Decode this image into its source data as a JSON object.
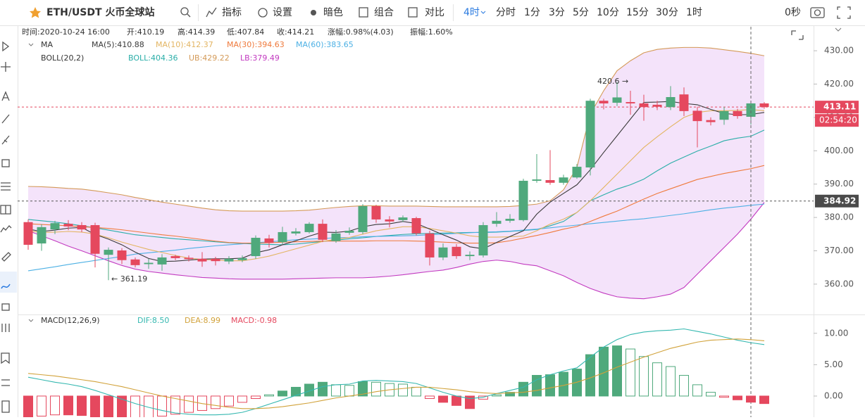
{
  "toolbar": {
    "symbol": "ETH/USDT 火币全球站",
    "buttons": [
      "指标",
      "设置",
      "暗色",
      "组合",
      "对比"
    ],
    "intervals": [
      "4时",
      "分时",
      "1分",
      "3分",
      "5分",
      "10分",
      "15分",
      "30分",
      "1时"
    ],
    "timer": "0秒"
  },
  "info": [
    "时间:2020-10-24 16:00",
    "开:410.19",
    "高:414.39",
    "低:407.84",
    "收:414.21",
    "涨幅:0.98%(4.03)",
    "振幅:1.60%"
  ],
  "chart_data": [
    {
      "type": "candlestick",
      "legend_ma": "MA",
      "legend_boll": "BOLL(20,2)",
      "ylim": [
        350.9,
        437.2
      ],
      "yticks": [
        {
          "value": 360,
          "label": "360.00"
        },
        {
          "value": 370,
          "label": "370.00"
        },
        {
          "value": 380,
          "label": "380.00"
        },
        {
          "value": 390,
          "label": "390.00"
        },
        {
          "value": 400,
          "label": "400.00"
        },
        {
          "value": 410,
          "label": "410.00"
        },
        {
          "value": 420,
          "label": "420.00"
        },
        {
          "value": 430,
          "label": "430.00"
        }
      ],
      "up_color": "#4fa97c",
      "down_color": "#e5485e",
      "open": [
        378.6,
        372.2,
        376.4,
        378.1,
        377.7,
        377.7,
        368.8,
        370.1,
        367.4,
        366.0,
        365.9,
        368.4,
        367.9,
        367.6,
        367.6,
        366.8,
        367.2,
        368.4,
        373.7,
        372.6,
        375.2,
        375.6,
        378.1,
        372.9,
        375.4,
        375.6,
        383.4,
        379.4,
        379.2,
        379.8,
        375.2,
        368.0,
        371.2,
        368.4,
        368.6,
        378.1,
        379.0,
        379.2,
        391.0,
        391.2,
        390.4,
        392.0,
        395.0,
        415.0,
        414.4,
        414.6,
        414.2,
        413.8,
        413.1,
        416.9,
        412.0,
        409.2,
        409.3,
        411.9,
        410.19,
        414.2
      ],
      "high": [
        379.4,
        378.0,
        379.0,
        379.2,
        378.6,
        378.4,
        371.0,
        370.8,
        368.0,
        367.6,
        369.0,
        368.8,
        368.6,
        369.6,
        368.2,
        368.4,
        368.6,
        374.6,
        374.8,
        377.2,
        376.8,
        378.6,
        379.4,
        376.2,
        377.0,
        384.0,
        383.8,
        380.4,
        380.6,
        380.2,
        376.0,
        372.2,
        372.0,
        369.8,
        378.6,
        381.6,
        381.0,
        391.6,
        399.0,
        400.2,
        392.8,
        396.0,
        415.6,
        415.6,
        420.6,
        418.0,
        416.8,
        415.0,
        419.4,
        419.0,
        413.2,
        410.0,
        413.2,
        412.6,
        414.39,
        414.6
      ],
      "low": [
        370.3,
        370.0,
        375.0,
        376.2,
        375.6,
        365.0,
        361.19,
        366.0,
        365.0,
        364.6,
        364.0,
        367.2,
        366.8,
        365.2,
        365.6,
        366.0,
        366.6,
        367.6,
        371.0,
        372.0,
        374.6,
        375.2,
        372.6,
        372.4,
        374.8,
        375.0,
        378.4,
        377.0,
        378.6,
        374.6,
        365.6,
        367.2,
        367.6,
        367.2,
        368.0,
        377.2,
        378.4,
        378.8,
        390.4,
        389.8,
        389.8,
        391.6,
        392.6,
        412.4,
        413.4,
        410.8,
        409.0,
        412.2,
        412.2,
        410.4,
        401.0,
        407.6,
        407.8,
        409.6,
        407.84,
        412.6
      ],
      "close": [
        371.8,
        377.1,
        378.3,
        377.3,
        376.4,
        369.1,
        370.3,
        367.2,
        365.7,
        366.4,
        368.0,
        367.8,
        367.5,
        366.8,
        366.9,
        367.6,
        367.8,
        373.9,
        372.4,
        375.6,
        375.8,
        378.1,
        373.3,
        375.2,
        376.0,
        383.4,
        379.4,
        378.8,
        380.0,
        375.2,
        368.0,
        371.0,
        368.4,
        368.8,
        377.7,
        379.0,
        379.6,
        391.0,
        391.4,
        390.4,
        392.0,
        395.2,
        415.0,
        414.2,
        416.0,
        414.2,
        413.1,
        413.2,
        416.1,
        411.9,
        408.9,
        408.6,
        411.9,
        410.4,
        414.21,
        413.1
      ],
      "boll_fill": "#f1dcf9",
      "series": [
        {
          "label": "UB:429.22",
          "color": "#d49a58",
          "group": "boll",
          "values": [
            389.3,
            389.2,
            389,
            388.7,
            388.5,
            388,
            387.4,
            386.8,
            386,
            385.3,
            384.6,
            384,
            383.4,
            382.8,
            382.3,
            382,
            381.9,
            381.9,
            381.9,
            381.9,
            382,
            382.2,
            382.6,
            383,
            383.3,
            383.5,
            383.5,
            383.4,
            383.4,
            383.4,
            383.3,
            383.2,
            383.2,
            383.2,
            383.2,
            383.2,
            383.3,
            383.6,
            384,
            385,
            388.3,
            395,
            411,
            418,
            424,
            427,
            429.4,
            430.4,
            430.8,
            431,
            431,
            430.8,
            430.3,
            429.8,
            429.22,
            428.5
          ]
        },
        {
          "label": "LB:379.49",
          "color": "#c23ac0",
          "group": "boll",
          "values": [
            376,
            374.5,
            373,
            371.4,
            370,
            368.5,
            367,
            365.6,
            364.5,
            363.8,
            363.3,
            362.8,
            362.4,
            362,
            361.8,
            361.6,
            361.5,
            361.5,
            361.5,
            361.5,
            361.6,
            361.7,
            361.8,
            361.9,
            361.9,
            361.9,
            362.1,
            362.4,
            362.8,
            363.3,
            363.8,
            364.2,
            365,
            366,
            366.8,
            367.2,
            366.8,
            366,
            365.5,
            364,
            362.5,
            360.5,
            358.7,
            357.3,
            356.2,
            355.8,
            355.6,
            356.2,
            357,
            359,
            363,
            367,
            371,
            375,
            379.49,
            384.5
          ]
        },
        {
          "label": "BOLL:404.36",
          "color": "#2aaea8",
          "group": "boll",
          "values": [
            379.4,
            379,
            378.6,
            378.1,
            377.5,
            376.9,
            376.2,
            375.5,
            374.8,
            374.4,
            374,
            373.6,
            373.3,
            373,
            372.7,
            372.4,
            372.2,
            372,
            371.9,
            371.8,
            372,
            372.4,
            372.8,
            373.2,
            373.6,
            373.9,
            374.3,
            374.6,
            374.9,
            375.1,
            375.2,
            375.3,
            375.4,
            375.5,
            375.5,
            375.6,
            375.8,
            376.1,
            376.4,
            377.5,
            378.8,
            381.5,
            385,
            386.8,
            388.5,
            389.8,
            391.5,
            394,
            396.3,
            398.1,
            399.9,
            401.4,
            403,
            403.8,
            404.36,
            406.2
          ]
        },
        {
          "label": "MA(60):383.65",
          "color": "#4cb0e4",
          "group": "ma",
          "values": [
            364,
            364.6,
            365.2,
            365.9,
            366.5,
            367.1,
            367.7,
            368.3,
            369,
            369.4,
            369.8,
            370.2,
            370.7,
            371.1,
            371.5,
            371.8,
            372.1,
            372.4,
            372.7,
            373,
            373.3,
            373.5,
            373.7,
            373.9,
            374,
            374.2,
            374.3,
            374.4,
            374.5,
            374.6,
            374.8,
            375,
            375.2,
            375.4,
            375.6,
            375.7,
            375.9,
            376.2,
            376.5,
            376.9,
            377.3,
            377.7,
            378.1,
            378.5,
            378.9,
            379.3,
            379.6,
            380.1,
            380.6,
            381.1,
            381.7,
            382.3,
            382.8,
            383.2,
            383.65,
            384
          ]
        },
        {
          "label": "MA(30):394.63",
          "color": "#ef7a3c",
          "group": "ma",
          "values": [
            378.1,
            377.9,
            377.7,
            377.5,
            377.2,
            377,
            376.7,
            376.3,
            375.8,
            375.3,
            374.8,
            374.4,
            373.9,
            373.4,
            372.9,
            372.5,
            372.3,
            372.3,
            372.4,
            372.6,
            372.7,
            372.8,
            372.9,
            372.9,
            372.9,
            372.9,
            373,
            373,
            373,
            372.9,
            372.8,
            372.6,
            372.4,
            372.3,
            372.3,
            372.4,
            373,
            373.8,
            374.6,
            375.5,
            376.5,
            377.3,
            378.8,
            380.4,
            381.9,
            383.7,
            385.5,
            387.2,
            388.6,
            390,
            391.4,
            392.3,
            393.2,
            393.9,
            394.63,
            395.6
          ]
        },
        {
          "label": "MA(10):412.37",
          "color": "#e3b562",
          "group": "ma",
          "values": [
            376,
            375.5,
            375.6,
            375.8,
            375.6,
            375,
            373.9,
            372.6,
            371.5,
            370.4,
            369.5,
            368.6,
            367.8,
            367.4,
            367.2,
            367,
            367,
            367.6,
            368.4,
            369.5,
            370.6,
            371.7,
            372.8,
            373.5,
            374,
            375,
            376,
            376.6,
            377.2,
            377.2,
            376.7,
            376,
            375.3,
            374.5,
            374.1,
            374.1,
            374.2,
            374.4,
            376,
            378,
            379.5,
            381.5,
            385,
            389,
            393,
            397,
            401,
            404.2,
            407.2,
            410,
            411.5,
            412,
            412,
            412.1,
            412.37,
            412
          ]
        },
        {
          "label": "MA(5):410.88",
          "color": "#3a3a3a",
          "group": "ma",
          "values": [
            376.5,
            375.8,
            376.2,
            376.8,
            377,
            374.9,
            373.5,
            371.8,
            369.6,
            367.7,
            366.8,
            366.9,
            367.2,
            367.5,
            367.6,
            367.6,
            367.8,
            369.4,
            370.3,
            371.8,
            373,
            374.4,
            375.6,
            375.5,
            375.9,
            377.2,
            377.9,
            378.1,
            378.8,
            378.2,
            376.5,
            374.8,
            373.2,
            371.2,
            370.6,
            372.5,
            374.3,
            376,
            381,
            384.6,
            387.2,
            389.8,
            394.3,
            399.5,
            404.5,
            409.5,
            414.5,
            414.6,
            414.8,
            414.2,
            413.8,
            412.4,
            411.2,
            410.8,
            410.88,
            411.5
          ]
        }
      ],
      "price_lines": [
        {
          "value": 413.11,
          "color": "#e5485e",
          "tag": "#e5485e"
        },
        {
          "value": 384.92,
          "color": "#555555",
          "tag": "#4a4a4a"
        }
      ],
      "countdown": "02:54:20",
      "annotations": [
        "420.6 →",
        "← 361.19"
      ]
    },
    {
      "type": "macd",
      "title": "MACD(12,26,9)",
      "ylim": [
        -3.37,
        13.0
      ],
      "yticks": [
        {
          "value": 0,
          "label": "0.00"
        },
        {
          "value": 5,
          "label": "5.00"
        },
        {
          "value": 10,
          "label": "10.00"
        }
      ],
      "up_color": "#4fa97c",
      "down_color": "#e5485e",
      "hist": [
        -3.5,
        -3.2,
        -3.0,
        -3.0,
        -3.1,
        -3.5,
        -3.8,
        -3.9,
        -3.8,
        -3.5,
        -3.2,
        -2.9,
        -2.6,
        -2.3,
        -2.0,
        -1.6,
        -1.0,
        -0.4,
        0.2,
        0.8,
        1.4,
        1.9,
        2.2,
        1.8,
        1.7,
        2.3,
        2.2,
        2.0,
        1.9,
        1.4,
        -0.4,
        -1.0,
        -1.5,
        -2.0,
        -0.5,
        0.2,
        0.6,
        2.2,
        3.3,
        3.4,
        3.8,
        4.3,
        6.6,
        7.8,
        8.0,
        7.5,
        6.3,
        5.3,
        4.7,
        3.3,
        1.8,
        0.6,
        -0.2,
        -0.6,
        -0.98,
        -1.2
      ],
      "series": [
        {
          "label": "DIF:8.50",
          "color": "#35b8b0",
          "values": [
            3.0,
            2.6,
            2.2,
            1.9,
            1.5,
            0.9,
            0.2,
            -0.5,
            -1.2,
            -1.8,
            -2.3,
            -2.7,
            -2.9,
            -3.0,
            -3.0,
            -2.9,
            -2.6,
            -2.0,
            -1.3,
            -0.6,
            0.1,
            0.8,
            1.5,
            1.8,
            1.9,
            2.4,
            2.5,
            2.4,
            2.3,
            2.0,
            1.3,
            0.6,
            0.0,
            -0.4,
            -0.2,
            0.4,
            0.9,
            1.4,
            2.6,
            3.4,
            4.0,
            4.5,
            6.2,
            7.8,
            9.0,
            9.8,
            10.2,
            10.4,
            10.5,
            10.7,
            10.3,
            9.9,
            9.4,
            8.9,
            8.5,
            8.2
          ]
        },
        {
          "label": "DEA:8.99",
          "color": "#d1a23a",
          "values": [
            3.6,
            3.4,
            3.2,
            2.9,
            2.6,
            2.3,
            1.9,
            1.5,
            1.0,
            0.5,
            0.0,
            -0.4,
            -0.8,
            -1.2,
            -1.5,
            -1.8,
            -2.0,
            -2.0,
            -1.9,
            -1.7,
            -1.4,
            -1.1,
            -0.7,
            -0.3,
            0.0,
            0.3,
            0.7,
            1.0,
            1.2,
            1.4,
            1.4,
            1.2,
            1.0,
            0.7,
            0.5,
            0.4,
            0.5,
            0.6,
            0.9,
            1.3,
            1.7,
            2.2,
            2.9,
            3.7,
            4.6,
            5.4,
            6.2,
            6.9,
            7.6,
            8.1,
            8.6,
            8.9,
            9.0,
            9.1,
            8.99,
            8.8
          ]
        }
      ],
      "hist_label": "MACD:-0.98"
    }
  ]
}
